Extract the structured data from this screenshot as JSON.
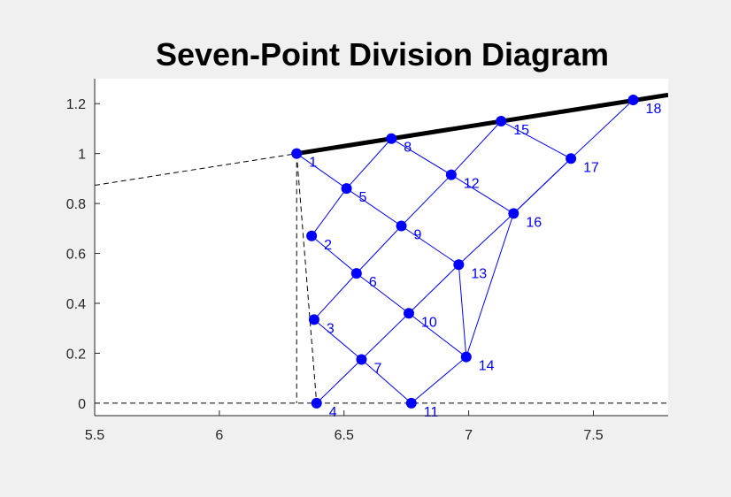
{
  "chart_data": {
    "type": "line",
    "title": "Seven-Point Division Diagram",
    "xlabel": "",
    "ylabel": "",
    "xlim": [
      5.5,
      7.8
    ],
    "ylim": [
      -0.05,
      1.3
    ],
    "xticks": [
      "5.5",
      "6",
      "6.5",
      "7",
      "7.5"
    ],
    "xtick_values": [
      5.5,
      6,
      6.5,
      7,
      7.5
    ],
    "yticks": [
      "0",
      "0.2",
      "0.4",
      "0.6",
      "0.8",
      "1",
      "1.2"
    ],
    "ytick_values": [
      0,
      0.2,
      0.4,
      0.6,
      0.8,
      1,
      1.2
    ],
    "grid": false,
    "colors": {
      "mesh": "#0000ff",
      "boundary": "#000000",
      "construction": "#000000",
      "label": "#0000ff"
    },
    "points": [
      {
        "id": "1",
        "x": 6.31,
        "y": 1.0
      },
      {
        "id": "2",
        "x": 6.37,
        "y": 0.67
      },
      {
        "id": "3",
        "x": 6.38,
        "y": 0.335
      },
      {
        "id": "4",
        "x": 6.39,
        "y": 0.0
      },
      {
        "id": "5",
        "x": 6.51,
        "y": 0.86
      },
      {
        "id": "6",
        "x": 6.55,
        "y": 0.52
      },
      {
        "id": "7",
        "x": 6.57,
        "y": 0.175
      },
      {
        "id": "8",
        "x": 6.69,
        "y": 1.06
      },
      {
        "id": "9",
        "x": 6.73,
        "y": 0.71
      },
      {
        "id": "10",
        "x": 6.76,
        "y": 0.36
      },
      {
        "id": "11",
        "x": 6.77,
        "y": 0.0
      },
      {
        "id": "12",
        "x": 6.93,
        "y": 0.915
      },
      {
        "id": "13",
        "x": 6.96,
        "y": 0.555
      },
      {
        "id": "14",
        "x": 6.99,
        "y": 0.185
      },
      {
        "id": "15",
        "x": 7.13,
        "y": 1.13
      },
      {
        "id": "16",
        "x": 7.18,
        "y": 0.76
      },
      {
        "id": "17",
        "x": 7.41,
        "y": 0.98
      },
      {
        "id": "18",
        "x": 7.66,
        "y": 1.215
      }
    ],
    "mesh_edges": [
      [
        "1",
        "5"
      ],
      [
        "5",
        "9"
      ],
      [
        "9",
        "13"
      ],
      [
        "13",
        "14"
      ],
      [
        "2",
        "6"
      ],
      [
        "6",
        "10"
      ],
      [
        "10",
        "14"
      ],
      [
        "3",
        "7"
      ],
      [
        "7",
        "11"
      ],
      [
        "8",
        "12"
      ],
      [
        "12",
        "16"
      ],
      [
        "16",
        "14"
      ],
      [
        "15",
        "17"
      ],
      [
        "17",
        "16"
      ],
      [
        "4",
        "7"
      ],
      [
        "7",
        "10"
      ],
      [
        "10",
        "13"
      ],
      [
        "13",
        "16"
      ],
      [
        "16",
        "17"
      ],
      [
        "17",
        "18"
      ],
      [
        "3",
        "6"
      ],
      [
        "6",
        "9"
      ],
      [
        "9",
        "12"
      ],
      [
        "12",
        "15"
      ],
      [
        "2",
        "5"
      ],
      [
        "5",
        "8"
      ],
      [
        "11",
        "14"
      ]
    ],
    "boundary_line": {
      "x": [
        6.31,
        7.8
      ],
      "y": [
        1.0,
        1.235
      ]
    },
    "construction_lines": [
      {
        "x": [
          5.5,
          6.31
        ],
        "y": [
          0.873,
          1.0
        ]
      },
      {
        "x": [
          6.31,
          6.39
        ],
        "y": [
          1.0,
          0.0
        ]
      },
      {
        "x": [
          6.31,
          6.31
        ],
        "y": [
          1.0,
          0.0
        ]
      },
      {
        "x": [
          5.5,
          7.8
        ],
        "y": [
          0.0,
          0.0
        ]
      }
    ]
  }
}
